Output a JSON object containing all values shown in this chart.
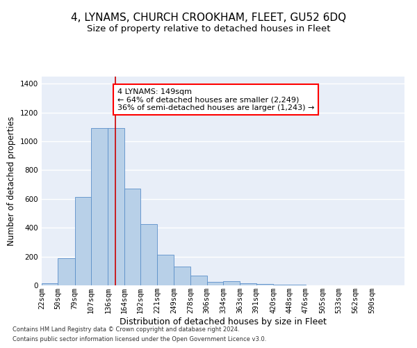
{
  "title": "4, LYNAMS, CHURCH CROOKHAM, FLEET, GU52 6DQ",
  "subtitle": "Size of property relative to detached houses in Fleet",
  "xlabel": "Distribution of detached houses by size in Fleet",
  "ylabel": "Number of detached properties",
  "bar_color": "#b8d0e8",
  "bar_edge_color": "#5b8fc9",
  "background_color": "#e8eef8",
  "grid_color": "#ffffff",
  "annotation_text": "4 LYNAMS: 149sqm\n← 64% of detached houses are smaller (2,249)\n36% of semi-detached houses are larger (1,243) →",
  "vline_x": 149,
  "vline_color": "#cc0000",
  "categories": [
    "22sqm",
    "50sqm",
    "79sqm",
    "107sqm",
    "136sqm",
    "164sqm",
    "192sqm",
    "221sqm",
    "249sqm",
    "278sqm",
    "306sqm",
    "334sqm",
    "363sqm",
    "391sqm",
    "420sqm",
    "448sqm",
    "476sqm",
    "505sqm",
    "533sqm",
    "562sqm",
    "590sqm"
  ],
  "bin_edges": [
    22,
    50,
    79,
    107,
    136,
    164,
    192,
    221,
    249,
    278,
    306,
    334,
    363,
    391,
    420,
    448,
    476,
    505,
    533,
    562,
    590,
    618
  ],
  "values": [
    15,
    190,
    615,
    1090,
    1090,
    670,
    425,
    215,
    130,
    70,
    25,
    30,
    15,
    10,
    5,
    5,
    2,
    2,
    1,
    1,
    0
  ],
  "ylim": [
    0,
    1450
  ],
  "yticks": [
    0,
    200,
    400,
    600,
    800,
    1000,
    1200,
    1400
  ],
  "footnote1": "Contains HM Land Registry data © Crown copyright and database right 2024.",
  "footnote2": "Contains public sector information licensed under the Open Government Licence v3.0.",
  "title_fontsize": 11,
  "subtitle_fontsize": 9.5,
  "xlabel_fontsize": 9,
  "ylabel_fontsize": 8.5,
  "tick_fontsize": 7.5,
  "annot_fontsize": 8,
  "footnote_fontsize": 6
}
